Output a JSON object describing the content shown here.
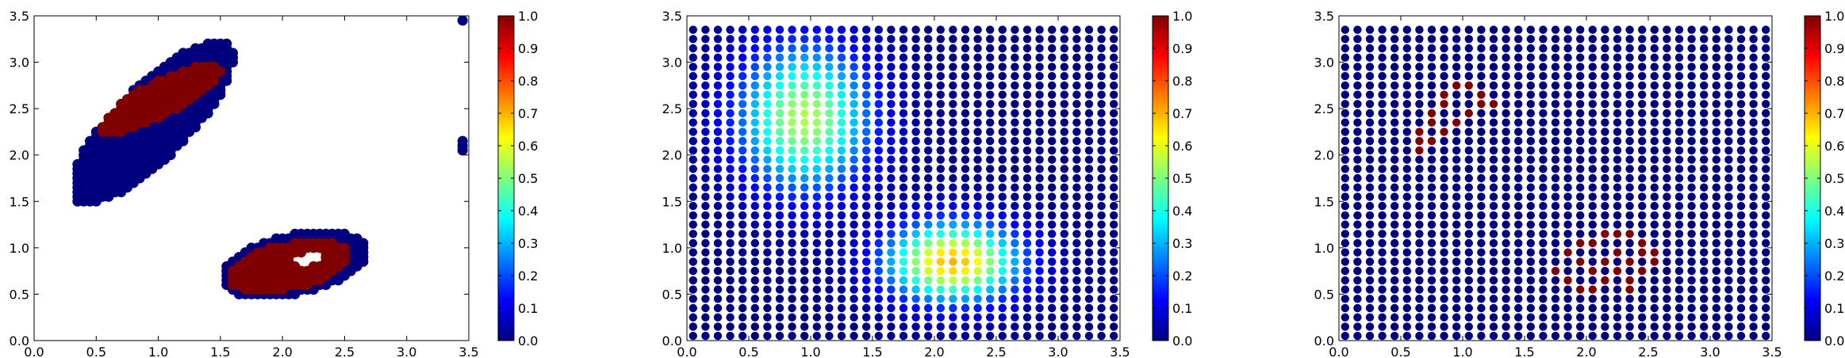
{
  "colormap": {
    "name": "jet",
    "stops": [
      "#00007f",
      "#0000ff",
      "#007fff",
      "#00ffff",
      "#7fff7f",
      "#ffff00",
      "#ff7f00",
      "#ff0000",
      "#7f0000"
    ]
  },
  "chart_data": [
    {
      "type": "scatter",
      "title": "",
      "xlabel": "",
      "ylabel": "",
      "xlim": [
        0.0,
        3.5
      ],
      "ylim": [
        0.0,
        3.5
      ],
      "x_ticks": [
        "0.0",
        "0.5",
        "1.0",
        "1.5",
        "2.0",
        "2.5",
        "3.0",
        "3.5"
      ],
      "y_ticks": [
        "0.0",
        "0.5",
        "1.0",
        "1.5",
        "2.0",
        "2.5",
        "3.0",
        "3.5"
      ],
      "colorbar": {
        "range": [
          0.0,
          1.0
        ],
        "ticks": [
          "0.0",
          "0.1",
          "0.2",
          "0.3",
          "0.4",
          "0.5",
          "0.6",
          "0.7",
          "0.8",
          "0.9",
          "1.0"
        ]
      },
      "description_shapes": {
        "blob_upper_left": {
          "center": [
            0.95,
            2.35
          ],
          "angle_deg": 55,
          "half_len": 1.05,
          "half_wid": 0.33,
          "low": 0,
          "core": {
            "center": [
              1.0,
              2.6
            ],
            "angle_deg": 35,
            "half_len": 0.6,
            "half_wid": 0.18,
            "value": 1
          }
        },
        "ring_lower_right": {
          "center": [
            2.1,
            0.82
          ],
          "angle_deg": 18,
          "half_len": 0.62,
          "half_wid": 0.32,
          "low": 0,
          "core": {
            "center": [
              2.05,
              0.8
            ],
            "angle_deg": 18,
            "half_len": 0.52,
            "half_wid": 0.24,
            "value": 1
          },
          "hole": {
            "center": [
              2.2,
              0.88
            ],
            "angle_deg": 18,
            "half_len": 0.14,
            "half_wid": 0.08
          }
        },
        "outliers": [
          [
            3.45,
            3.45,
            0
          ],
          [
            3.45,
            2.15,
            0
          ],
          [
            3.45,
            2.1,
            0
          ],
          [
            3.45,
            2.05,
            0
          ]
        ]
      }
    },
    {
      "type": "scatter",
      "title": "",
      "xlabel": "",
      "ylabel": "",
      "xlim": [
        0.0,
        3.5
      ],
      "ylim": [
        0.0,
        3.5
      ],
      "x_ticks": [
        "0.0",
        "0.5",
        "1.0",
        "1.5",
        "2.0",
        "2.5",
        "3.0",
        "3.5"
      ],
      "y_ticks": [
        "0.0",
        "0.5",
        "1.0",
        "1.5",
        "2.0",
        "2.5",
        "3.0",
        "3.5"
      ],
      "colorbar": {
        "range": [
          0.0,
          1.0
        ],
        "ticks": [
          "0.0",
          "0.1",
          "0.2",
          "0.3",
          "0.4",
          "0.5",
          "0.6",
          "0.7",
          "0.8",
          "0.9",
          "1.0"
        ]
      },
      "grid_points": {
        "x_start": 0.05,
        "x_step": 0.1,
        "x_count": 35,
        "y_start": 0.05,
        "y_step": 0.1,
        "y_count": 34
      },
      "value_field": [
        {
          "center": [
            0.95,
            2.4
          ],
          "sx": 0.38,
          "sy": 0.55,
          "peak": 0.55
        },
        {
          "center": [
            2.15,
            0.85
          ],
          "sx": 0.38,
          "sy": 0.3,
          "peak": 0.7
        }
      ]
    },
    {
      "type": "scatter",
      "title": "",
      "xlabel": "",
      "ylabel": "",
      "xlim": [
        0.0,
        3.5
      ],
      "ylim": [
        0.0,
        3.5
      ],
      "x_ticks": [
        "0.0",
        "0.5",
        "1.0",
        "1.5",
        "2.0",
        "2.5",
        "3.0",
        "3.5"
      ],
      "y_ticks": [
        "0.0",
        "0.5",
        "1.0",
        "1.5",
        "2.0",
        "2.5",
        "3.0",
        "3.5"
      ],
      "colorbar": {
        "range": [
          0.0,
          1.0
        ],
        "ticks": [
          "0.0",
          "0.1",
          "0.2",
          "0.3",
          "0.4",
          "0.5",
          "0.6",
          "0.7",
          "0.8",
          "0.9",
          "1.0"
        ]
      },
      "grid_points": {
        "x_start": 0.05,
        "x_step": 0.1,
        "x_count": 35,
        "y_start": 0.05,
        "y_step": 0.1,
        "y_count": 34
      },
      "background_value": 0,
      "high_points": [
        [
          0.95,
          2.75
        ],
        [
          1.05,
          2.75
        ],
        [
          0.85,
          2.65
        ],
        [
          1.15,
          2.65
        ],
        [
          0.85,
          2.55
        ],
        [
          1.15,
          2.55
        ],
        [
          1.25,
          2.55
        ],
        [
          0.75,
          2.45
        ],
        [
          1.05,
          2.45
        ],
        [
          0.75,
          2.35
        ],
        [
          0.95,
          2.35
        ],
        [
          0.65,
          2.25
        ],
        [
          0.85,
          2.25
        ],
        [
          0.65,
          2.15
        ],
        [
          0.75,
          2.15
        ],
        [
          0.65,
          2.05
        ],
        [
          2.15,
          1.15
        ],
        [
          2.25,
          1.15
        ],
        [
          2.35,
          1.15
        ],
        [
          1.95,
          1.05
        ],
        [
          2.05,
          1.05
        ],
        [
          2.45,
          1.05
        ],
        [
          1.85,
          0.95
        ],
        [
          2.25,
          0.95
        ],
        [
          2.45,
          0.95
        ],
        [
          2.55,
          0.95
        ],
        [
          1.95,
          0.85
        ],
        [
          2.15,
          0.85
        ],
        [
          2.35,
          0.85
        ],
        [
          2.55,
          0.85
        ],
        [
          1.75,
          0.75
        ],
        [
          2.05,
          0.75
        ],
        [
          2.25,
          0.75
        ],
        [
          2.45,
          0.75
        ],
        [
          1.85,
          0.65
        ],
        [
          2.15,
          0.65
        ],
        [
          2.35,
          0.65
        ],
        [
          1.95,
          0.55
        ],
        [
          2.05,
          0.55
        ],
        [
          2.35,
          0.55
        ]
      ]
    }
  ]
}
